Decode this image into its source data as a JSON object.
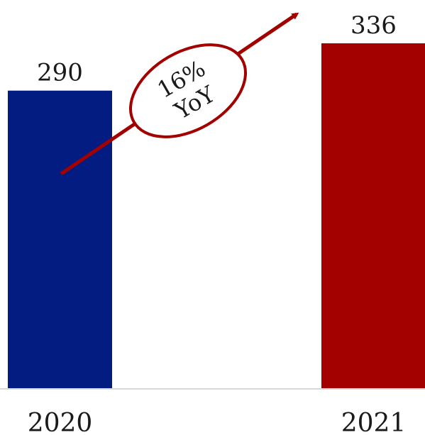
{
  "chart_data": {
    "type": "bar",
    "categories": [
      "2020",
      "2021"
    ],
    "values": [
      290,
      336
    ],
    "data_labels": [
      "290",
      "336"
    ],
    "bar_colors": [
      "#031c82",
      "#a30000"
    ],
    "ylim": [
      0,
      345
    ],
    "grid": false,
    "legend": "none",
    "annotation": {
      "lines": [
        "16%",
        "YoY"
      ],
      "color": "#a30000"
    }
  }
}
